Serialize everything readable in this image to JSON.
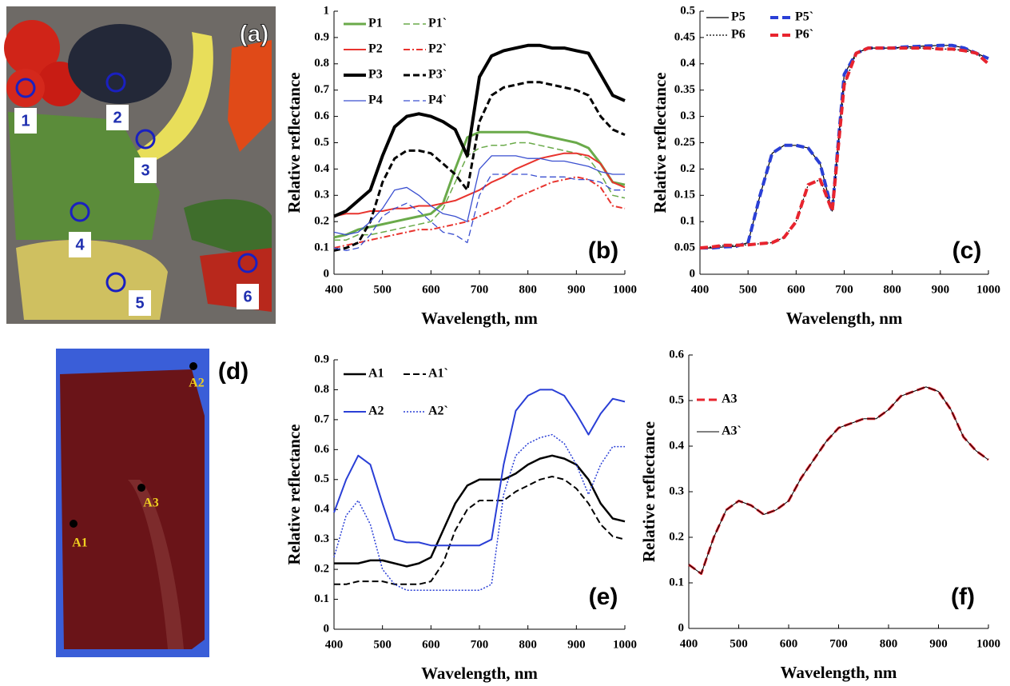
{
  "photos": {
    "a": {
      "panel_label": "(a)",
      "markers": [
        "1",
        "2",
        "3",
        "4",
        "5",
        "6"
      ]
    },
    "d": {
      "panel_label": "(d)",
      "points": [
        "A1",
        "A2",
        "A3"
      ]
    }
  },
  "chart_data": [
    {
      "type": "line",
      "panel_label": "(b)",
      "x_label": "Wavelength, nm",
      "y_label": "Relative reflectance",
      "x": [
        400,
        425,
        450,
        475,
        500,
        525,
        550,
        575,
        600,
        625,
        650,
        675,
        700,
        725,
        750,
        775,
        800,
        825,
        850,
        875,
        900,
        925,
        950,
        975,
        1000
      ],
      "xlim": [
        400,
        1000
      ],
      "xticks": [
        400,
        500,
        600,
        700,
        800,
        900,
        1000
      ],
      "ylim": [
        0,
        1
      ],
      "yticks": [
        0,
        0.1,
        0.2,
        0.3,
        0.4,
        0.5,
        0.6,
        0.7,
        0.8,
        0.9,
        1
      ],
      "series": [
        {
          "name": "P1",
          "color": "#6aaa4a",
          "line_style": "solid",
          "line_width": 3,
          "values": [
            0.14,
            0.15,
            0.17,
            0.18,
            0.19,
            0.2,
            0.21,
            0.22,
            0.23,
            0.27,
            0.4,
            0.52,
            0.54,
            0.54,
            0.54,
            0.54,
            0.54,
            0.53,
            0.52,
            0.51,
            0.5,
            0.48,
            0.42,
            0.35,
            0.34
          ]
        },
        {
          "name": "P1`",
          "color": "#6aaa4a",
          "line_style": "dashed",
          "line_width": 1.5,
          "values": [
            0.13,
            0.13,
            0.15,
            0.15,
            0.16,
            0.17,
            0.18,
            0.19,
            0.2,
            0.25,
            0.35,
            0.45,
            0.48,
            0.49,
            0.49,
            0.5,
            0.5,
            0.49,
            0.48,
            0.47,
            0.46,
            0.44,
            0.38,
            0.3,
            0.29
          ]
        },
        {
          "name": "P2",
          "color": "#e8342e",
          "line_style": "solid",
          "line_width": 2,
          "values": [
            0.22,
            0.23,
            0.23,
            0.24,
            0.24,
            0.25,
            0.25,
            0.26,
            0.26,
            0.27,
            0.28,
            0.3,
            0.32,
            0.35,
            0.37,
            0.4,
            0.42,
            0.44,
            0.45,
            0.46,
            0.46,
            0.45,
            0.42,
            0.35,
            0.33
          ]
        },
        {
          "name": "P2`",
          "color": "#e8342e",
          "line_style": "dashdot",
          "line_width": 2,
          "values": [
            0.1,
            0.11,
            0.12,
            0.13,
            0.14,
            0.15,
            0.16,
            0.17,
            0.17,
            0.18,
            0.19,
            0.2,
            0.22,
            0.24,
            0.26,
            0.29,
            0.31,
            0.33,
            0.35,
            0.36,
            0.37,
            0.36,
            0.33,
            0.26,
            0.25
          ]
        },
        {
          "name": "P3",
          "color": "#000000",
          "line_style": "solid",
          "line_width": 4,
          "values": [
            0.22,
            0.24,
            0.28,
            0.32,
            0.45,
            0.56,
            0.6,
            0.61,
            0.6,
            0.58,
            0.55,
            0.45,
            0.75,
            0.83,
            0.85,
            0.86,
            0.87,
            0.87,
            0.86,
            0.86,
            0.85,
            0.84,
            0.76,
            0.68,
            0.66
          ]
        },
        {
          "name": "P3`",
          "color": "#000000",
          "line_style": "dashed",
          "line_width": 3,
          "values": [
            0.09,
            0.1,
            0.12,
            0.2,
            0.35,
            0.44,
            0.47,
            0.47,
            0.46,
            0.42,
            0.38,
            0.32,
            0.58,
            0.68,
            0.71,
            0.72,
            0.73,
            0.73,
            0.72,
            0.71,
            0.7,
            0.68,
            0.6,
            0.55,
            0.53
          ]
        },
        {
          "name": "P4",
          "color": "#3a4fd0",
          "line_style": "solid",
          "line_width": 1.3,
          "values": [
            0.16,
            0.15,
            0.16,
            0.2,
            0.25,
            0.32,
            0.33,
            0.3,
            0.26,
            0.23,
            0.22,
            0.2,
            0.4,
            0.45,
            0.45,
            0.45,
            0.44,
            0.44,
            0.43,
            0.43,
            0.42,
            0.41,
            0.39,
            0.38,
            0.38
          ]
        },
        {
          "name": "P4`",
          "color": "#3a4fd0",
          "line_style": "dashed",
          "line_width": 1.3,
          "values": [
            0.1,
            0.09,
            0.1,
            0.15,
            0.22,
            0.25,
            0.27,
            0.24,
            0.2,
            0.16,
            0.15,
            0.12,
            0.3,
            0.38,
            0.38,
            0.38,
            0.38,
            0.37,
            0.37,
            0.37,
            0.36,
            0.36,
            0.35,
            0.32,
            0.32
          ]
        }
      ]
    },
    {
      "type": "line",
      "panel_label": "(c)",
      "x_label": "Wavelength, nm",
      "y_label": "Relative reflectance",
      "x": [
        400,
        425,
        450,
        475,
        500,
        525,
        550,
        575,
        600,
        625,
        650,
        675,
        700,
        725,
        750,
        775,
        800,
        825,
        850,
        875,
        900,
        925,
        950,
        975,
        1000
      ],
      "xlim": [
        400,
        1000
      ],
      "xticks": [
        400,
        500,
        600,
        700,
        800,
        900,
        1000
      ],
      "ylim": [
        0,
        0.5
      ],
      "yticks": [
        0,
        0.05,
        0.1,
        0.15,
        0.2,
        0.25,
        0.3,
        0.35,
        0.4,
        0.45,
        0.5
      ],
      "series": [
        {
          "name": "P5",
          "color": "#000000",
          "line_style": "solid",
          "line_width": 1.2,
          "values": [
            0.05,
            0.05,
            0.052,
            0.053,
            0.06,
            0.15,
            0.23,
            0.245,
            0.245,
            0.24,
            0.21,
            0.12,
            0.38,
            0.42,
            0.43,
            0.43,
            0.43,
            0.432,
            0.433,
            0.434,
            0.435,
            0.435,
            0.43,
            0.42,
            0.41
          ]
        },
        {
          "name": "P5`",
          "color": "#2a3fd6",
          "line_style": "bigdash",
          "line_width": 4,
          "values": [
            0.05,
            0.05,
            0.052,
            0.053,
            0.06,
            0.15,
            0.23,
            0.245,
            0.245,
            0.24,
            0.21,
            0.12,
            0.38,
            0.42,
            0.43,
            0.43,
            0.43,
            0.432,
            0.433,
            0.434,
            0.435,
            0.435,
            0.43,
            0.42,
            0.41
          ]
        },
        {
          "name": "P6",
          "color": "#000000",
          "line_style": "dotted",
          "line_width": 1.2,
          "values": [
            0.05,
            0.052,
            0.055,
            0.055,
            0.056,
            0.058,
            0.06,
            0.07,
            0.1,
            0.17,
            0.18,
            0.12,
            0.36,
            0.42,
            0.43,
            0.43,
            0.43,
            0.43,
            0.43,
            0.43,
            0.428,
            0.428,
            0.425,
            0.42,
            0.4
          ]
        },
        {
          "name": "P6`",
          "color": "#e8242e",
          "line_style": "bigdash",
          "line_width": 4,
          "values": [
            0.05,
            0.052,
            0.055,
            0.055,
            0.056,
            0.058,
            0.06,
            0.07,
            0.1,
            0.17,
            0.18,
            0.12,
            0.36,
            0.42,
            0.43,
            0.43,
            0.43,
            0.43,
            0.43,
            0.43,
            0.428,
            0.428,
            0.425,
            0.42,
            0.4
          ]
        }
      ]
    },
    {
      "type": "line",
      "panel_label": "(e)",
      "x_label": "Wavelength, nm",
      "y_label": "Relative reflectance",
      "x": [
        400,
        425,
        450,
        475,
        500,
        525,
        550,
        575,
        600,
        625,
        650,
        675,
        700,
        725,
        750,
        775,
        800,
        825,
        850,
        875,
        900,
        925,
        950,
        975,
        1000
      ],
      "xlim": [
        400,
        1000
      ],
      "xticks": [
        400,
        500,
        600,
        700,
        800,
        900,
        1000
      ],
      "ylim": [
        0,
        0.9
      ],
      "yticks": [
        0,
        0.1,
        0.2,
        0.3,
        0.4,
        0.5,
        0.6,
        0.7,
        0.8,
        0.9
      ],
      "series": [
        {
          "name": "A1",
          "color": "#000000",
          "line_style": "solid",
          "line_width": 2.5,
          "values": [
            0.22,
            0.22,
            0.22,
            0.23,
            0.23,
            0.22,
            0.21,
            0.22,
            0.24,
            0.33,
            0.42,
            0.48,
            0.5,
            0.5,
            0.5,
            0.52,
            0.55,
            0.57,
            0.58,
            0.57,
            0.55,
            0.5,
            0.42,
            0.37,
            0.36
          ]
        },
        {
          "name": "A1`",
          "color": "#000000",
          "line_style": "dashed",
          "line_width": 2,
          "values": [
            0.15,
            0.15,
            0.16,
            0.16,
            0.16,
            0.15,
            0.15,
            0.15,
            0.16,
            0.22,
            0.33,
            0.4,
            0.43,
            0.43,
            0.43,
            0.46,
            0.48,
            0.5,
            0.51,
            0.5,
            0.47,
            0.42,
            0.35,
            0.31,
            0.3
          ]
        },
        {
          "name": "A2",
          "color": "#2a3fd6",
          "line_style": "solid",
          "line_width": 2,
          "values": [
            0.39,
            0.5,
            0.58,
            0.55,
            0.42,
            0.3,
            0.29,
            0.29,
            0.28,
            0.28,
            0.28,
            0.28,
            0.28,
            0.3,
            0.55,
            0.73,
            0.78,
            0.8,
            0.8,
            0.78,
            0.72,
            0.65,
            0.72,
            0.77,
            0.76
          ]
        },
        {
          "name": "A2`",
          "color": "#2a3fd6",
          "line_style": "dotted",
          "line_width": 1.5,
          "values": [
            0.24,
            0.38,
            0.43,
            0.35,
            0.2,
            0.15,
            0.13,
            0.13,
            0.13,
            0.13,
            0.13,
            0.13,
            0.13,
            0.15,
            0.45,
            0.58,
            0.62,
            0.64,
            0.65,
            0.62,
            0.55,
            0.45,
            0.55,
            0.61,
            0.61
          ]
        }
      ]
    },
    {
      "type": "line",
      "panel_label": "(f)",
      "x_label": "Wavelength, nm",
      "y_label": "Relative reflectance",
      "x": [
        400,
        425,
        450,
        475,
        500,
        525,
        550,
        575,
        600,
        625,
        650,
        675,
        700,
        725,
        750,
        775,
        800,
        825,
        850,
        875,
        900,
        925,
        950,
        975,
        1000
      ],
      "xlim": [
        400,
        1000
      ],
      "xticks": [
        400,
        500,
        600,
        700,
        800,
        900,
        1000
      ],
      "ylim": [
        0,
        0.6
      ],
      "yticks": [
        0,
        0.1,
        0.2,
        0.3,
        0.4,
        0.5,
        0.6
      ],
      "series": [
        {
          "name": "A3",
          "color": "#e8242e",
          "line_style": "bigdash",
          "line_width": 3,
          "values": [
            0.14,
            0.12,
            0.2,
            0.26,
            0.28,
            0.27,
            0.25,
            0.26,
            0.28,
            0.33,
            0.37,
            0.41,
            0.44,
            0.45,
            0.46,
            0.46,
            0.48,
            0.51,
            0.52,
            0.53,
            0.52,
            0.48,
            0.42,
            0.39,
            0.37
          ]
        },
        {
          "name": "A3`",
          "color": "#000000",
          "line_style": "solid",
          "line_width": 1,
          "values": [
            0.14,
            0.12,
            0.2,
            0.26,
            0.28,
            0.27,
            0.25,
            0.26,
            0.28,
            0.33,
            0.37,
            0.41,
            0.44,
            0.45,
            0.46,
            0.46,
            0.48,
            0.51,
            0.52,
            0.53,
            0.52,
            0.48,
            0.42,
            0.39,
            0.37
          ]
        }
      ]
    }
  ]
}
